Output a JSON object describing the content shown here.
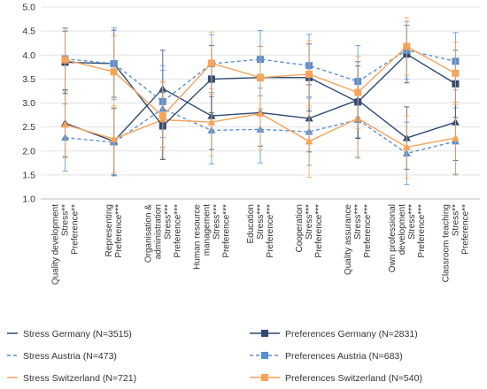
{
  "chart_data": {
    "type": "line",
    "title": "",
    "xlabel": "",
    "ylabel": "",
    "ylim": [
      1.0,
      5.0
    ],
    "yticks": [
      1.0,
      1.5,
      2.0,
      2.5,
      3.0,
      3.5,
      4.0,
      4.5,
      5.0
    ],
    "grid": "horizontal",
    "legend_position": "bottom",
    "categories": [
      {
        "lines": [
          "Quality development",
          "Stress**",
          "Preference**"
        ]
      },
      {
        "lines": [
          "Representing",
          "Preference***"
        ]
      },
      {
        "lines": [
          "Organisation &",
          "administration",
          "Stress***",
          "Preference***"
        ]
      },
      {
        "lines": [
          "Human resource",
          "management",
          "Stress***",
          "Preference***"
        ]
      },
      {
        "lines": [
          "Education",
          "Stress***",
          "Preference***"
        ]
      },
      {
        "lines": [
          "Cooperation",
          "Stress***",
          "Preference***"
        ]
      },
      {
        "lines": [
          "Quality assurance",
          "Stress***",
          "Preference***"
        ]
      },
      {
        "lines": [
          "Own professional",
          "development",
          "Stress***",
          "Preference***"
        ]
      },
      {
        "lines": [
          "Classroom teaching",
          "Stress**",
          "Preference**"
        ]
      }
    ],
    "series": [
      {
        "name": "Stress Germany (N=3515)",
        "color": "#2e4a73",
        "dashed": false,
        "marker": "triangle",
        "values": [
          2.58,
          2.2,
          3.3,
          2.73,
          2.8,
          2.68,
          3.06,
          2.27,
          2.6
        ],
        "err": [
          0.7,
          0.7,
          0.8,
          0.7,
          0.7,
          0.7,
          0.8,
          0.65,
          0.8
        ]
      },
      {
        "name": "Stress Austria (N=473)",
        "color": "#5a8fd6",
        "dashed": true,
        "marker": "triangle",
        "values": [
          2.28,
          2.18,
          2.88,
          2.43,
          2.45,
          2.4,
          2.65,
          1.95,
          2.2
        ],
        "err": [
          0.7,
          0.7,
          0.8,
          0.7,
          0.7,
          0.7,
          0.8,
          0.65,
          0.7
        ]
      },
      {
        "name": "Stress Switzerland (N=721)",
        "color": "#f5a45a",
        "dashed": false,
        "marker": "triangle",
        "values": [
          2.55,
          2.25,
          2.65,
          2.6,
          2.78,
          2.2,
          2.68,
          2.08,
          2.27
        ],
        "err": [
          0.7,
          0.7,
          0.8,
          0.7,
          0.75,
          0.75,
          0.8,
          0.65,
          0.75
        ]
      },
      {
        "name": "Preferences Germany (N=2831)",
        "color": "#2e4a73",
        "dashed": false,
        "marker": "square",
        "values": [
          3.85,
          3.82,
          2.52,
          3.5,
          3.53,
          3.53,
          3.02,
          4.02,
          3.4
        ],
        "err": [
          0.65,
          0.7,
          0.7,
          0.7,
          0.65,
          0.7,
          0.75,
          0.6,
          0.7
        ]
      },
      {
        "name": "Preferences Austria (N=683)",
        "color": "#5a8fd6",
        "dashed": true,
        "marker": "square",
        "values": [
          3.92,
          3.82,
          3.03,
          3.82,
          3.91,
          3.78,
          3.45,
          4.1,
          3.87
        ],
        "err": [
          0.65,
          0.75,
          0.75,
          0.6,
          0.6,
          0.65,
          0.75,
          0.6,
          0.6
        ]
      },
      {
        "name": "Preferences Switzerland (N=540)",
        "color": "#f5a45a",
        "dashed": false,
        "marker": "square",
        "values": [
          3.9,
          3.65,
          2.73,
          3.83,
          3.53,
          3.6,
          3.22,
          4.18,
          3.62
        ],
        "err": [
          0.65,
          0.75,
          0.7,
          0.65,
          0.65,
          0.7,
          0.75,
          0.6,
          0.65
        ]
      }
    ]
  }
}
